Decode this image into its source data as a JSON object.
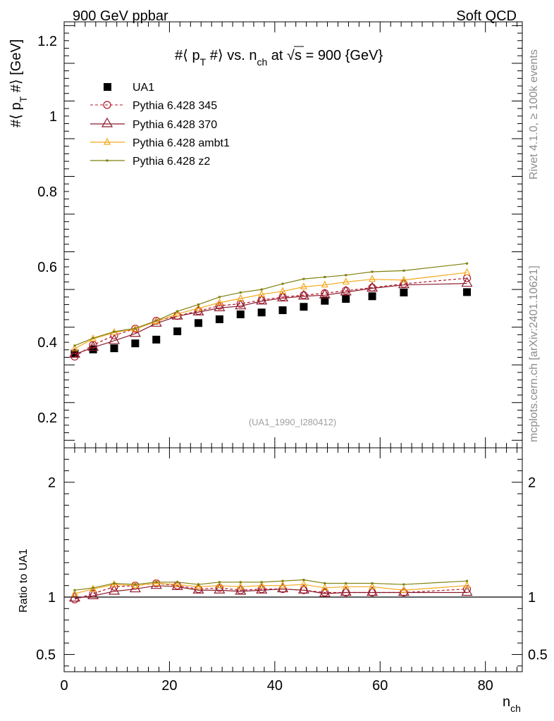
{
  "header": {
    "left": "900 GeV ppbar",
    "right": "Soft QCD"
  },
  "side_text": {
    "top": "Rivet 4.1.0, ≥ 100k events",
    "bottom": "mcplots.cern.ch [arXiv:2401.10621]"
  },
  "colors": {
    "data": "#000000",
    "p345": "#b2182b",
    "p370": "#8b1a2c",
    "ambt1": "#f4a81c",
    "z2": "#7f7f0e"
  },
  "chart_data": [
    {
      "type": "scatter",
      "panel": "main",
      "title": "#⟨ pT #⟩ vs. nch at √s = 900 {GeV}",
      "ylabel": "#⟨ pT #⟩ [GeV]",
      "xlim": [
        0,
        87
      ],
      "ylim": [
        0.12,
        1.25
      ],
      "yticks": [
        0.2,
        0.4,
        0.6,
        0.8,
        1,
        1.2
      ],
      "ytick_labels": [
        "0.2",
        "0.4",
        "0.6",
        "0.8",
        "1",
        "1.2"
      ],
      "watermark": "(UA1_1990_I280412)",
      "x": [
        2,
        5.5,
        9.5,
        13.5,
        17.5,
        21.5,
        25.5,
        29.5,
        33.5,
        37.5,
        41.5,
        45.5,
        49.5,
        53.5,
        58.5,
        64.5,
        76.5
      ],
      "series": [
        {
          "name": "UA1",
          "key": "data",
          "style": "square",
          "values": [
            0.37,
            0.381,
            0.384,
            0.397,
            0.407,
            0.429,
            0.451,
            0.461,
            0.474,
            0.479,
            0.485,
            0.494,
            0.51,
            0.515,
            0.522,
            0.532,
            0.533
          ]
        },
        {
          "name": "Pythia 6.428 345",
          "key": "p345",
          "style": "circle-dashed",
          "values": [
            0.362,
            0.393,
            0.418,
            0.436,
            0.457,
            0.47,
            0.483,
            0.497,
            0.502,
            0.512,
            0.52,
            0.525,
            0.53,
            0.537,
            0.545,
            0.555,
            0.57
          ]
        },
        {
          "name": "Pythia 6.428 370",
          "key": "p370",
          "style": "triangle-large",
          "values": [
            0.368,
            0.386,
            0.404,
            0.423,
            0.45,
            0.469,
            0.48,
            0.491,
            0.496,
            0.509,
            0.517,
            0.522,
            0.525,
            0.533,
            0.543,
            0.552,
            0.556
          ]
        },
        {
          "name": "Pythia 6.428 ambt1",
          "key": "ambt1",
          "style": "triangle-small",
          "values": [
            0.383,
            0.409,
            0.426,
            0.435,
            0.455,
            0.475,
            0.49,
            0.505,
            0.516,
            0.527,
            0.535,
            0.547,
            0.552,
            0.56,
            0.567,
            0.565,
            0.585
          ]
        },
        {
          "name": "Pythia 6.428 z2",
          "key": "z2",
          "style": "dot",
          "values": [
            0.391,
            0.411,
            0.428,
            0.437,
            0.457,
            0.482,
            0.5,
            0.52,
            0.532,
            0.54,
            0.555,
            0.568,
            0.573,
            0.578,
            0.587,
            0.59,
            0.609
          ]
        }
      ]
    },
    {
      "type": "line",
      "panel": "ratio",
      "ylabel": "Ratio to UA1",
      "xlabel": "nch",
      "xlim": [
        0,
        87
      ],
      "ylim": [
        0.35,
        2.3
      ],
      "yticks": [
        0.5,
        1,
        2
      ],
      "ytick_labels": [
        "0.5",
        "1",
        "2"
      ],
      "xticks": [
        0,
        20,
        40,
        60,
        80
      ],
      "xtick_labels": [
        "0",
        "20",
        "40",
        "60",
        "80"
      ],
      "x": [
        2,
        5.5,
        9.5,
        13.5,
        17.5,
        21.5,
        25.5,
        29.5,
        33.5,
        37.5,
        41.5,
        45.5,
        49.5,
        53.5,
        58.5,
        64.5,
        76.5
      ],
      "series": [
        {
          "name": "Pythia 6.428 345",
          "key": "p345",
          "style": "circle-dashed",
          "values": [
            0.98,
            1.03,
            1.09,
            1.1,
            1.12,
            1.1,
            1.07,
            1.08,
            1.06,
            1.07,
            1.07,
            1.06,
            1.04,
            1.04,
            1.04,
            1.04,
            1.07
          ]
        },
        {
          "name": "Pythia 6.428 370",
          "key": "p370",
          "style": "triangle-large",
          "values": [
            0.99,
            1.01,
            1.05,
            1.07,
            1.1,
            1.09,
            1.06,
            1.06,
            1.05,
            1.06,
            1.07,
            1.06,
            1.03,
            1.04,
            1.04,
            1.04,
            1.04
          ]
        },
        {
          "name": "Pythia 6.428 ambt1",
          "key": "ambt1",
          "style": "triangle-small",
          "values": [
            1.03,
            1.07,
            1.11,
            1.1,
            1.12,
            1.11,
            1.09,
            1.1,
            1.09,
            1.1,
            1.1,
            1.11,
            1.08,
            1.09,
            1.09,
            1.06,
            1.1
          ]
        },
        {
          "name": "Pythia 6.428 z2",
          "key": "z2",
          "style": "dot",
          "values": [
            1.06,
            1.08,
            1.12,
            1.11,
            1.13,
            1.13,
            1.11,
            1.13,
            1.13,
            1.13,
            1.14,
            1.15,
            1.12,
            1.12,
            1.12,
            1.11,
            1.14
          ]
        }
      ]
    }
  ]
}
